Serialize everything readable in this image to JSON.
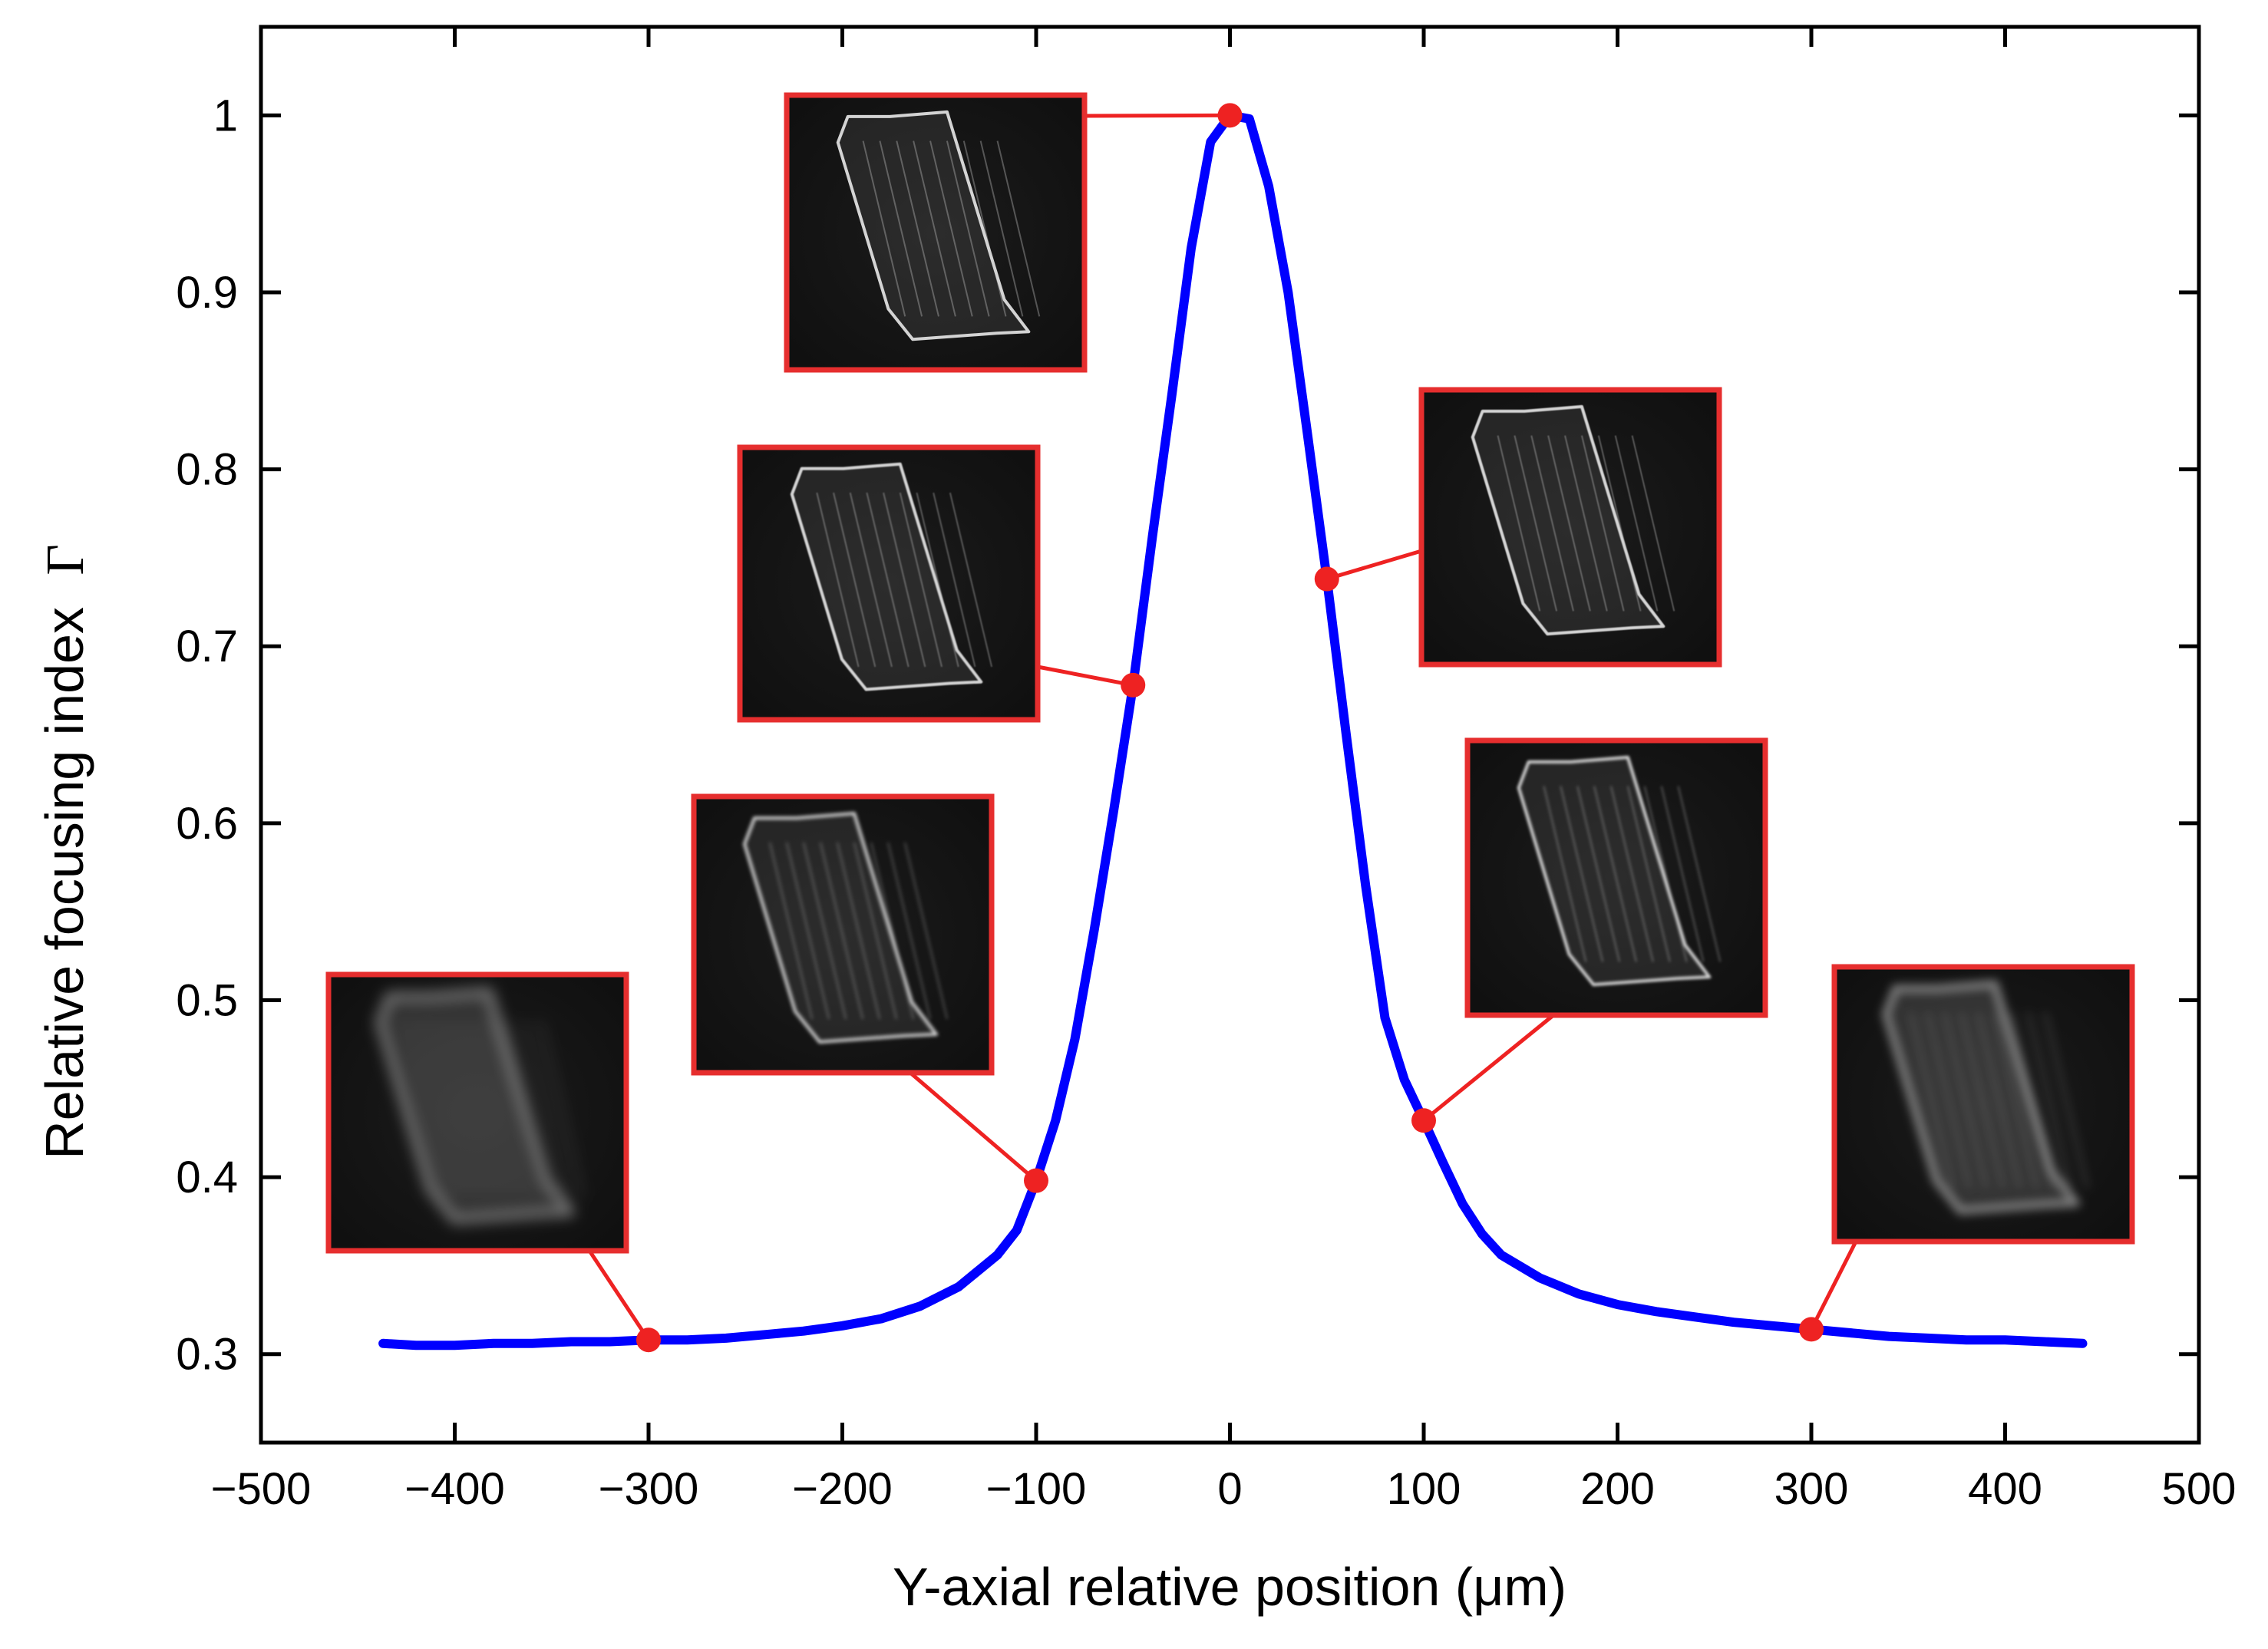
{
  "chart_data": {
    "type": "line",
    "title": "",
    "xlabel": "Y-axial relative position (μm)",
    "ylabel": "Relative focusing index",
    "ylabel_symbol": "Γ",
    "xlim": [
      -500,
      500
    ],
    "ylim": [
      0.25,
      1.05
    ],
    "x_ticks": [
      -500,
      -400,
      -300,
      -200,
      -100,
      0,
      100,
      200,
      300,
      400,
      500
    ],
    "x_tick_labels": [
      "−500",
      "−400",
      "−300",
      "−200",
      "−100",
      "0",
      "100",
      "200",
      "300",
      "400",
      "500"
    ],
    "y_ticks": [
      0.3,
      0.4,
      0.5,
      0.6,
      0.7,
      0.8,
      0.9,
      1.0
    ],
    "y_tick_labels": [
      "0.3",
      "0.4",
      "0.5",
      "0.6",
      "0.7",
      "0.8",
      "0.9",
      "1"
    ],
    "grid": false,
    "series": [
      {
        "name": "Relative focusing index",
        "color": "#0000ff",
        "x": [
          -437,
          -420,
          -400,
          -380,
          -360,
          -340,
          -320,
          -300,
          -280,
          -260,
          -240,
          -220,
          -200,
          -180,
          -160,
          -140,
          -120,
          -110,
          -100,
          -90,
          -80,
          -70,
          -60,
          -50,
          -40,
          -30,
          -20,
          -10,
          0,
          10,
          20,
          30,
          40,
          50,
          60,
          70,
          80,
          90,
          100,
          110,
          120,
          130,
          140,
          160,
          180,
          200,
          220,
          240,
          260,
          280,
          300,
          320,
          340,
          360,
          380,
          400,
          420,
          440
        ],
        "y": [
          0.306,
          0.305,
          0.305,
          0.306,
          0.306,
          0.307,
          0.307,
          0.308,
          0.308,
          0.309,
          0.311,
          0.313,
          0.316,
          0.32,
          0.327,
          0.338,
          0.356,
          0.37,
          0.398,
          0.432,
          0.478,
          0.54,
          0.607,
          0.678,
          0.762,
          0.842,
          0.925,
          0.985,
          1.0,
          0.998,
          0.96,
          0.9,
          0.82,
          0.738,
          0.65,
          0.565,
          0.49,
          0.455,
          0.432,
          0.408,
          0.385,
          0.368,
          0.356,
          0.343,
          0.334,
          0.328,
          0.324,
          0.321,
          0.318,
          0.316,
          0.314,
          0.312,
          0.31,
          0.309,
          0.308,
          0.308,
          0.307,
          0.306
        ]
      }
    ],
    "markers": [
      {
        "x": -300,
        "y": 0.308,
        "color": "#ee2222"
      },
      {
        "x": -100,
        "y": 0.398,
        "color": "#ee2222"
      },
      {
        "x": -50,
        "y": 0.678,
        "color": "#ee2222"
      },
      {
        "x": 0,
        "y": 1.0,
        "color": "#ee2222"
      },
      {
        "x": 50,
        "y": 0.738,
        "color": "#ee2222"
      },
      {
        "x": 100,
        "y": 0.432,
        "color": "#ee2222"
      },
      {
        "x": 300,
        "y": 0.314,
        "color": "#ee2222"
      }
    ],
    "insets": [
      {
        "name": "inset-minus300",
        "marker_x": -300,
        "blur": 9
      },
      {
        "name": "inset-minus100",
        "marker_x": -100,
        "blur": 2.5
      },
      {
        "name": "inset-minus50",
        "marker_x": -50,
        "blur": 0.8
      },
      {
        "name": "inset-0",
        "marker_x": 0,
        "blur": 0
      },
      {
        "name": "inset-50",
        "marker_x": 50,
        "blur": 0.6
      },
      {
        "name": "inset-100",
        "marker_x": 100,
        "blur": 1.8
      },
      {
        "name": "inset-300",
        "marker_x": 300,
        "blur": 6
      }
    ]
  }
}
